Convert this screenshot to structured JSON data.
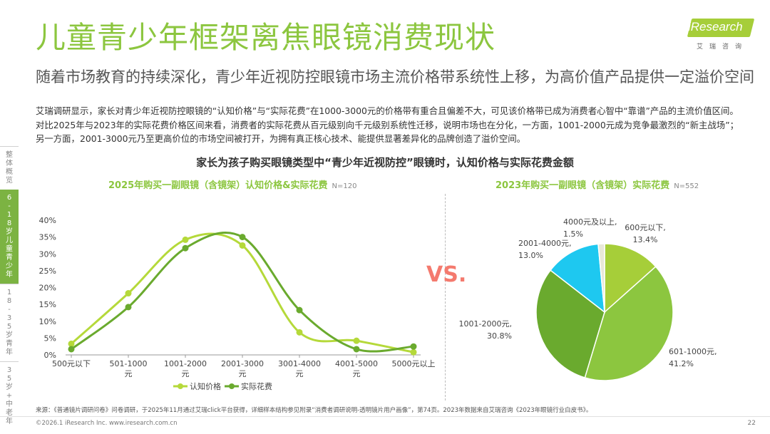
{
  "header": {
    "title": "儿童青少年框架离焦眼镜消费现状",
    "subtitle": "随着市场教育的持续深化，青少年近视防控眼镜市场主流价格带系统性上移，为高价值产品提供一定溢价空间",
    "description": "艾瑞调研显示，家长对青少年近视防控眼镜的“认知价格”与“实际花费”在1000-3000元的价格带有重合且偏差不大，可见该价格带已成为消费者心智中“靠谱”产品的主流价值区间。对比2025年与2023年的实际花费价格区间来看，消费者的实际花费从百元级别向千元级别系统性迁移，说明市场也在分化，一方面，1001-2000元成为竞争最激烈的“新主战场”；另一方面，2001-3000元乃至更高价位的市场空间被打开，为拥有真正核心技术、能提供显著差异化的品牌创造了溢价空间。"
  },
  "logo": {
    "name": "iResearch",
    "sub": "艾瑞咨询"
  },
  "sidebar": {
    "items": [
      {
        "label": "整体概览"
      },
      {
        "label": "6-18岁儿童青少年"
      },
      {
        "label": "18-35岁青年"
      },
      {
        "label": "35岁+中老年"
      }
    ]
  },
  "colors": {
    "accent": "#8cc63f",
    "perceived": "#b5d93a",
    "actual": "#6aaa2e",
    "vs": "#f47a6e"
  },
  "chart_title": "家长为孩子购买眼镜类型中“青少年近视防控”眼镜时，认知价格与实际花费金额",
  "vs_text": "VS.",
  "chart_data": [
    {
      "type": "line",
      "title": "2025年购买一副眼镜（含镜架）认知价格&实际花费",
      "sample": "N=120",
      "categories": [
        "500元以下",
        "501-1000元",
        "1001-2000元",
        "2001-3000元",
        "3001-4000元",
        "4001-5000元",
        "5000元以上"
      ],
      "y_ticks": [
        "0%",
        "5%",
        "10%",
        "15%",
        "20%",
        "25%",
        "30%",
        "35%",
        "40%"
      ],
      "ylim": [
        0,
        40
      ],
      "series": [
        {
          "name": "认知价格",
          "values": [
            3.3,
            18.3,
            34.2,
            32.5,
            6.7,
            4.2,
            0.8
          ]
        },
        {
          "name": "实际花费",
          "values": [
            1.7,
            14.2,
            31.7,
            35.0,
            13.3,
            1.7,
            2.5
          ]
        }
      ],
      "legend_position": "bottom"
    },
    {
      "type": "pie",
      "title": "2023年购买一副眼镜（含镜架）实际花费",
      "sample": "N=552",
      "slices": [
        {
          "label": "600元以下,13.4%",
          "value": 13.4,
          "color": "#a6ce39"
        },
        {
          "label": "601-1000元,41.2%",
          "value": 41.2,
          "color": "#8cc63f"
        },
        {
          "label": "1001-2000元,30.8%",
          "value": 30.8,
          "color": "#6aaa2e"
        },
        {
          "label": "2001-4000元,13.0%",
          "value": 13.0,
          "color": "#1ec8f0"
        },
        {
          "label": "4000元及以上, 1.5%",
          "value": 1.5,
          "color": "#e8e8d8"
        }
      ]
    }
  ],
  "source": "来源：《普通镜片调研问卷》问卷调研，于2025年11月通过艾瑞click平台获得，详细样本结构参见附录“消费者调研说明-透明镜片用户画像”，第74页。2023年数据来自艾瑞咨询《2023年眼镜行业白皮书》。",
  "footer": {
    "copyright": "©2026.1 iResearch Inc. www.iresearch.com.cn",
    "page": "22"
  }
}
